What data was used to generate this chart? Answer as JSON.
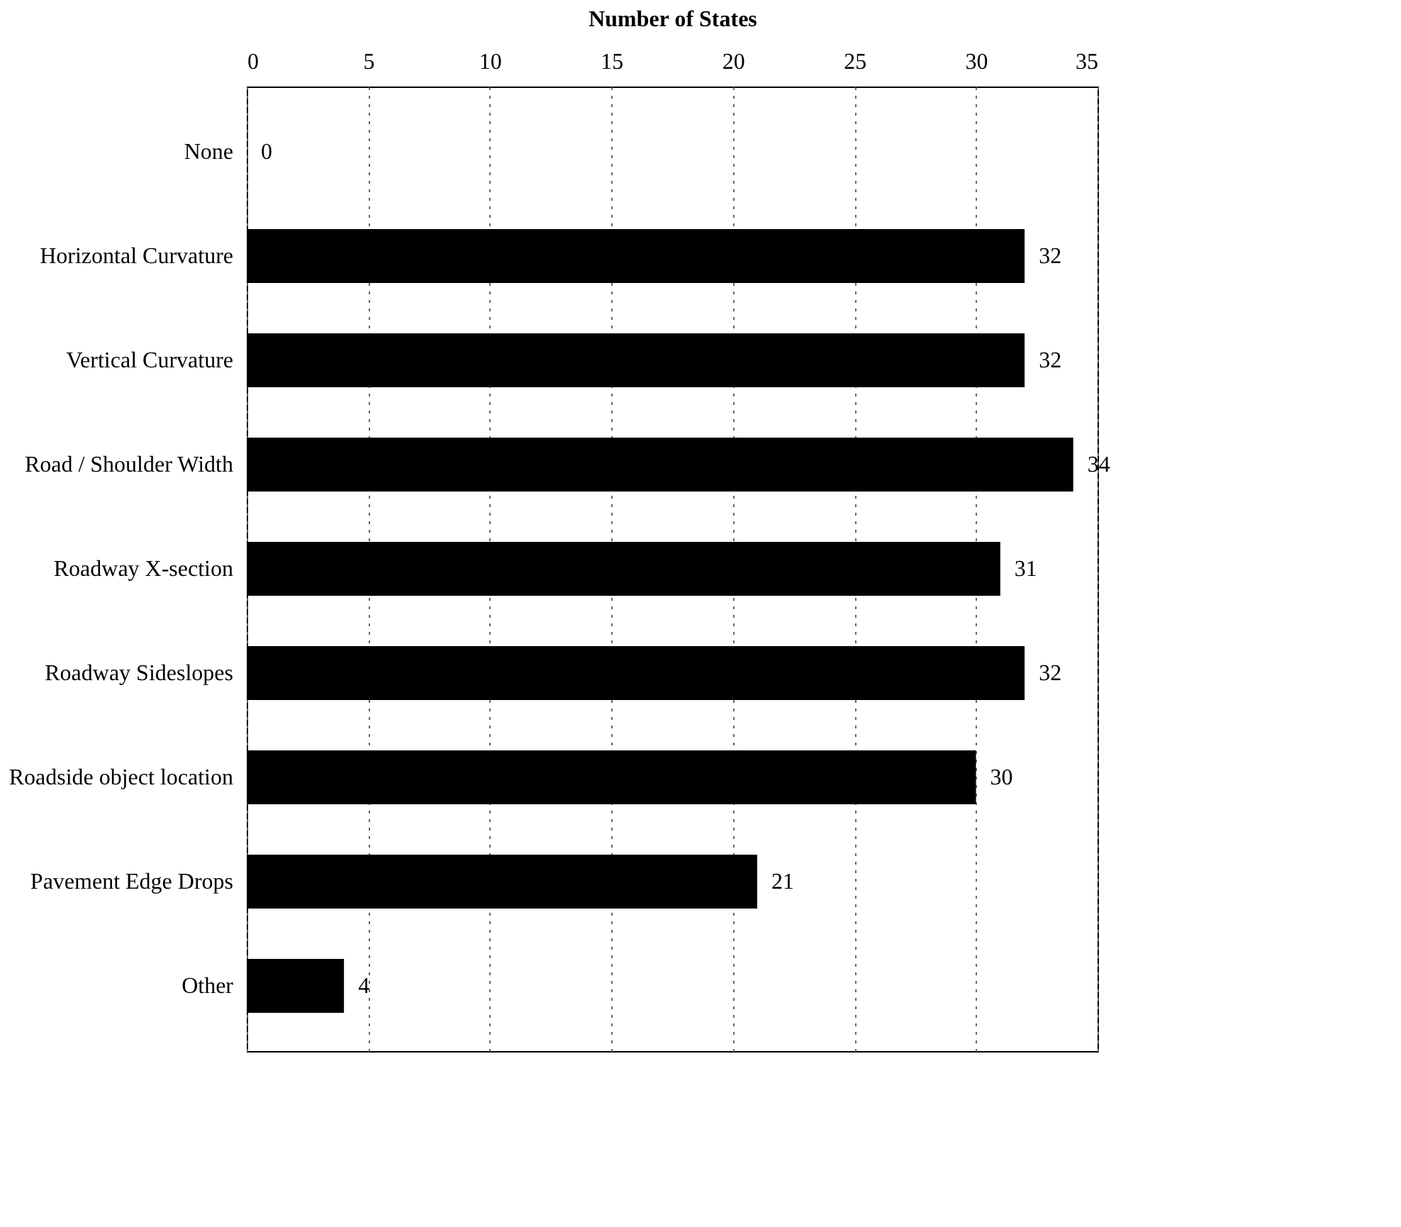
{
  "chart_data": {
    "type": "bar",
    "orientation": "horizontal",
    "xlabel": "Number of States",
    "categories": [
      "None",
      "Horizontal Curvature",
      "Vertical Curvature",
      "Road / Shoulder Width",
      "Roadway X-section",
      "Roadway Sideslopes",
      "Roadside object location",
      "Pavement Edge Drops",
      "Other"
    ],
    "values": [
      0,
      32,
      32,
      34,
      31,
      32,
      30,
      21,
      4
    ],
    "color": "#000000",
    "xlim": [
      0,
      35
    ],
    "xticks": [
      0,
      5,
      10,
      15,
      20,
      25,
      30,
      35
    ],
    "grid": "x",
    "data_labels": true
  }
}
